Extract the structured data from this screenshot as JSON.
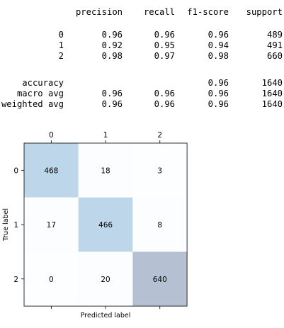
{
  "report": {
    "headers": [
      "precision",
      "recall",
      "f1-score",
      "support"
    ],
    "rows": [
      {
        "label": "0",
        "precision": "0.96",
        "recall": "0.96",
        "f1": "0.96",
        "support": "489"
      },
      {
        "label": "1",
        "precision": "0.92",
        "recall": "0.95",
        "f1": "0.94",
        "support": "491"
      },
      {
        "label": "2",
        "precision": "0.98",
        "recall": "0.97",
        "f1": "0.98",
        "support": "660"
      }
    ],
    "summary": [
      {
        "label": "accuracy",
        "precision": "",
        "recall": "",
        "f1": "0.96",
        "support": "1640"
      },
      {
        "label": "macro avg",
        "precision": "0.96",
        "recall": "0.96",
        "f1": "0.96",
        "support": "1640"
      },
      {
        "label": "weighted avg",
        "precision": "0.96",
        "recall": "0.96",
        "f1": "0.96",
        "support": "1640"
      }
    ]
  },
  "chart_data": {
    "type": "heatmap",
    "title": "",
    "xlabel": "Predicted label",
    "ylabel": "True label",
    "x_ticks": [
      "0",
      "1",
      "2"
    ],
    "y_ticks": [
      "0",
      "1",
      "2"
    ],
    "x_tick_position": "top",
    "values": [
      [
        468,
        18,
        3
      ],
      [
        17,
        466,
        8
      ],
      [
        0,
        20,
        640
      ]
    ],
    "colormap": "Blues",
    "alpha": 0.3,
    "cell_text_color": "#000000",
    "grid": false
  }
}
